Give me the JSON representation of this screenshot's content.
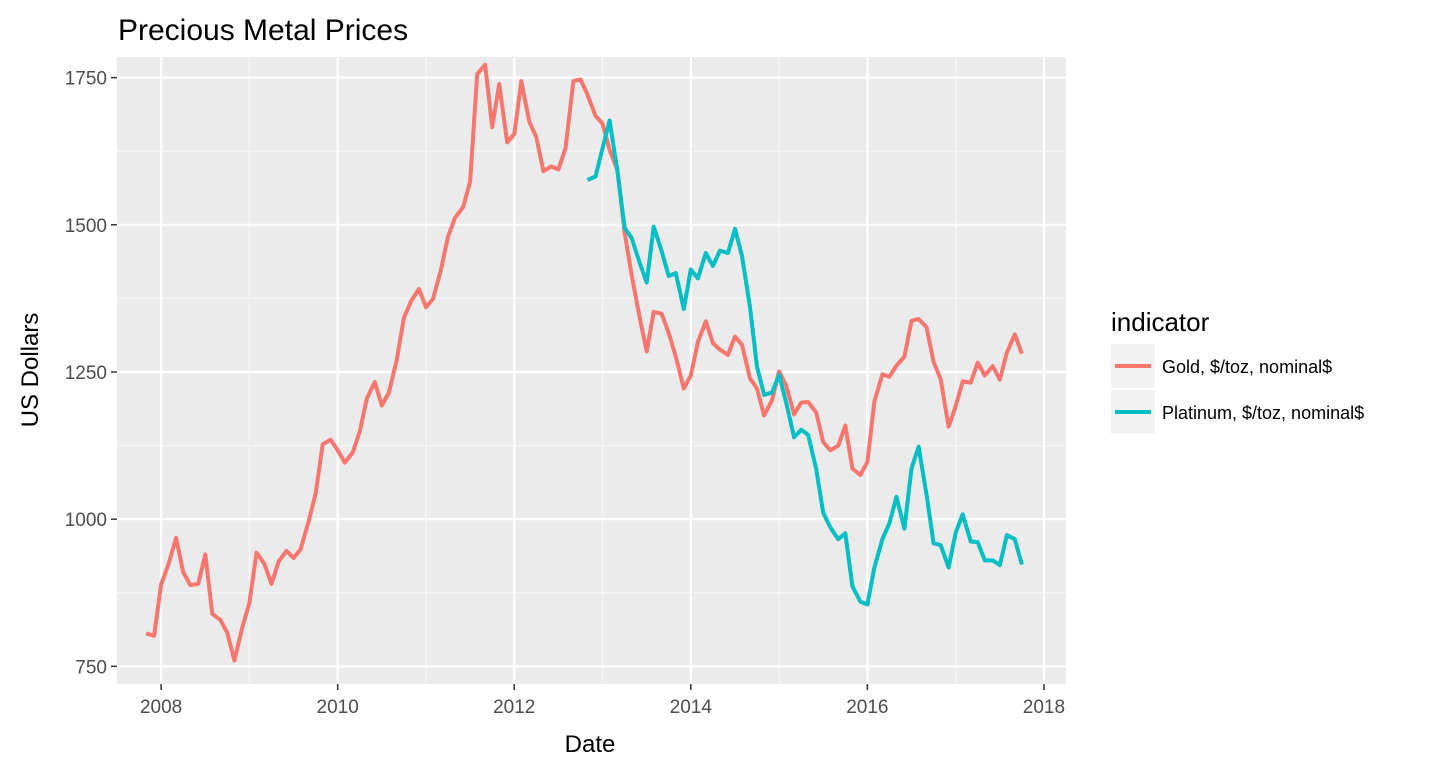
{
  "chart_data": {
    "type": "line",
    "title": "Precious Metal Prices",
    "xlabel": "Date",
    "ylabel": "US Dollars",
    "xlim": [
      2007.5,
      2018.25
    ],
    "ylim": [
      720,
      1785
    ],
    "x_ticks": [
      2008,
      2010,
      2012,
      2014,
      2016,
      2018
    ],
    "y_ticks": [
      750,
      1000,
      1250,
      1500,
      1750
    ],
    "grid": true,
    "background": "#ebebeb",
    "legend": {
      "title": "indicator",
      "position": "right"
    },
    "series": [
      {
        "name": "Gold, $/toz, nominal$",
        "color": "#f8766d",
        "points": [
          [
            2007.83,
            806
          ],
          [
            2007.92,
            802
          ],
          [
            2008.0,
            889
          ],
          [
            2008.08,
            922
          ],
          [
            2008.17,
            968
          ],
          [
            2008.25,
            910
          ],
          [
            2008.33,
            888
          ],
          [
            2008.42,
            890
          ],
          [
            2008.5,
            940
          ],
          [
            2008.58,
            839
          ],
          [
            2008.67,
            829
          ],
          [
            2008.75,
            807
          ],
          [
            2008.83,
            760
          ],
          [
            2008.92,
            817
          ],
          [
            2009.0,
            858
          ],
          [
            2009.08,
            943
          ],
          [
            2009.17,
            924
          ],
          [
            2009.25,
            890
          ],
          [
            2009.33,
            928
          ],
          [
            2009.42,
            946
          ],
          [
            2009.5,
            934
          ],
          [
            2009.58,
            949
          ],
          [
            2009.67,
            996
          ],
          [
            2009.75,
            1043
          ],
          [
            2009.83,
            1127
          ],
          [
            2009.92,
            1135
          ],
          [
            2010.0,
            1117
          ],
          [
            2010.08,
            1096
          ],
          [
            2010.17,
            1113
          ],
          [
            2010.25,
            1149
          ],
          [
            2010.33,
            1205
          ],
          [
            2010.42,
            1233
          ],
          [
            2010.5,
            1193
          ],
          [
            2010.58,
            1215
          ],
          [
            2010.67,
            1271
          ],
          [
            2010.75,
            1342
          ],
          [
            2010.83,
            1370
          ],
          [
            2010.92,
            1391
          ],
          [
            2011.0,
            1360
          ],
          [
            2011.08,
            1374
          ],
          [
            2011.17,
            1424
          ],
          [
            2011.25,
            1480
          ],
          [
            2011.33,
            1512
          ],
          [
            2011.42,
            1530
          ],
          [
            2011.5,
            1573
          ],
          [
            2011.58,
            1756
          ],
          [
            2011.67,
            1772
          ],
          [
            2011.75,
            1666
          ],
          [
            2011.83,
            1739
          ],
          [
            2011.92,
            1640
          ],
          [
            2012.0,
            1654
          ],
          [
            2012.08,
            1744
          ],
          [
            2012.17,
            1675
          ],
          [
            2012.25,
            1649
          ],
          [
            2012.33,
            1591
          ],
          [
            2012.42,
            1599
          ],
          [
            2012.5,
            1594
          ],
          [
            2012.58,
            1630
          ],
          [
            2012.67,
            1744
          ],
          [
            2012.75,
            1747
          ],
          [
            2012.83,
            1721
          ],
          [
            2012.92,
            1685
          ],
          [
            2013.0,
            1672
          ],
          [
            2013.08,
            1627
          ],
          [
            2013.17,
            1593
          ],
          [
            2013.25,
            1487
          ],
          [
            2013.33,
            1414
          ],
          [
            2013.42,
            1343
          ],
          [
            2013.5,
            1285
          ],
          [
            2013.58,
            1352
          ],
          [
            2013.67,
            1349
          ],
          [
            2013.75,
            1316
          ],
          [
            2013.83,
            1276
          ],
          [
            2013.92,
            1222
          ],
          [
            2014.0,
            1244
          ],
          [
            2014.08,
            1301
          ],
          [
            2014.17,
            1336
          ],
          [
            2014.25,
            1299
          ],
          [
            2014.33,
            1288
          ],
          [
            2014.42,
            1279
          ],
          [
            2014.5,
            1310
          ],
          [
            2014.58,
            1296
          ],
          [
            2014.67,
            1239
          ],
          [
            2014.75,
            1222
          ],
          [
            2014.83,
            1176
          ],
          [
            2014.92,
            1202
          ],
          [
            2015.0,
            1251
          ],
          [
            2015.08,
            1227
          ],
          [
            2015.17,
            1178
          ],
          [
            2015.25,
            1198
          ],
          [
            2015.33,
            1199
          ],
          [
            2015.42,
            1181
          ],
          [
            2015.5,
            1131
          ],
          [
            2015.58,
            1117
          ],
          [
            2015.67,
            1125
          ],
          [
            2015.75,
            1159
          ],
          [
            2015.83,
            1086
          ],
          [
            2015.92,
            1075
          ],
          [
            2016.0,
            1097
          ],
          [
            2016.08,
            1200
          ],
          [
            2016.17,
            1246
          ],
          [
            2016.25,
            1242
          ],
          [
            2016.33,
            1261
          ],
          [
            2016.42,
            1276
          ],
          [
            2016.5,
            1337
          ],
          [
            2016.58,
            1340
          ],
          [
            2016.67,
            1326
          ],
          [
            2016.75,
            1267
          ],
          [
            2016.83,
            1238
          ],
          [
            2016.92,
            1157
          ],
          [
            2017.0,
            1192
          ],
          [
            2017.08,
            1234
          ],
          [
            2017.17,
            1232
          ],
          [
            2017.25,
            1266
          ],
          [
            2017.33,
            1244
          ],
          [
            2017.42,
            1260
          ],
          [
            2017.5,
            1237
          ],
          [
            2017.58,
            1283
          ],
          [
            2017.67,
            1314
          ],
          [
            2017.75,
            1281
          ]
        ]
      },
      {
        "name": "Platinum, $/toz, nominal$",
        "color": "#00bfc4",
        "points": [
          [
            2012.83,
            1576
          ],
          [
            2012.92,
            1582
          ],
          [
            2013.0,
            1630
          ],
          [
            2013.08,
            1677
          ],
          [
            2013.17,
            1590
          ],
          [
            2013.25,
            1495
          ],
          [
            2013.33,
            1477
          ],
          [
            2013.42,
            1436
          ],
          [
            2013.5,
            1402
          ],
          [
            2013.58,
            1497
          ],
          [
            2013.67,
            1455
          ],
          [
            2013.75,
            1413
          ],
          [
            2013.83,
            1418
          ],
          [
            2013.92,
            1357
          ],
          [
            2014.0,
            1424
          ],
          [
            2014.08,
            1409
          ],
          [
            2014.17,
            1452
          ],
          [
            2014.25,
            1430
          ],
          [
            2014.33,
            1456
          ],
          [
            2014.42,
            1452
          ],
          [
            2014.5,
            1493
          ],
          [
            2014.58,
            1447
          ],
          [
            2014.67,
            1360
          ],
          [
            2014.75,
            1259
          ],
          [
            2014.83,
            1211
          ],
          [
            2014.92,
            1215
          ],
          [
            2015.0,
            1245
          ],
          [
            2015.08,
            1198
          ],
          [
            2015.17,
            1139
          ],
          [
            2015.25,
            1152
          ],
          [
            2015.33,
            1143
          ],
          [
            2015.42,
            1085
          ],
          [
            2015.5,
            1011
          ],
          [
            2015.58,
            986
          ],
          [
            2015.67,
            966
          ],
          [
            2015.75,
            976
          ],
          [
            2015.83,
            886
          ],
          [
            2015.92,
            860
          ],
          [
            2016.0,
            855
          ],
          [
            2016.08,
            918
          ],
          [
            2016.17,
            966
          ],
          [
            2016.25,
            993
          ],
          [
            2016.33,
            1038
          ],
          [
            2016.42,
            984
          ],
          [
            2016.5,
            1086
          ],
          [
            2016.58,
            1123
          ],
          [
            2016.67,
            1042
          ],
          [
            2016.75,
            959
          ],
          [
            2016.83,
            956
          ],
          [
            2016.92,
            918
          ],
          [
            2017.0,
            977
          ],
          [
            2017.08,
            1008
          ],
          [
            2017.17,
            962
          ],
          [
            2017.25,
            961
          ],
          [
            2017.33,
            930
          ],
          [
            2017.42,
            930
          ],
          [
            2017.5,
            922
          ],
          [
            2017.58,
            973
          ],
          [
            2017.67,
            966
          ],
          [
            2017.75,
            923
          ]
        ]
      }
    ]
  }
}
